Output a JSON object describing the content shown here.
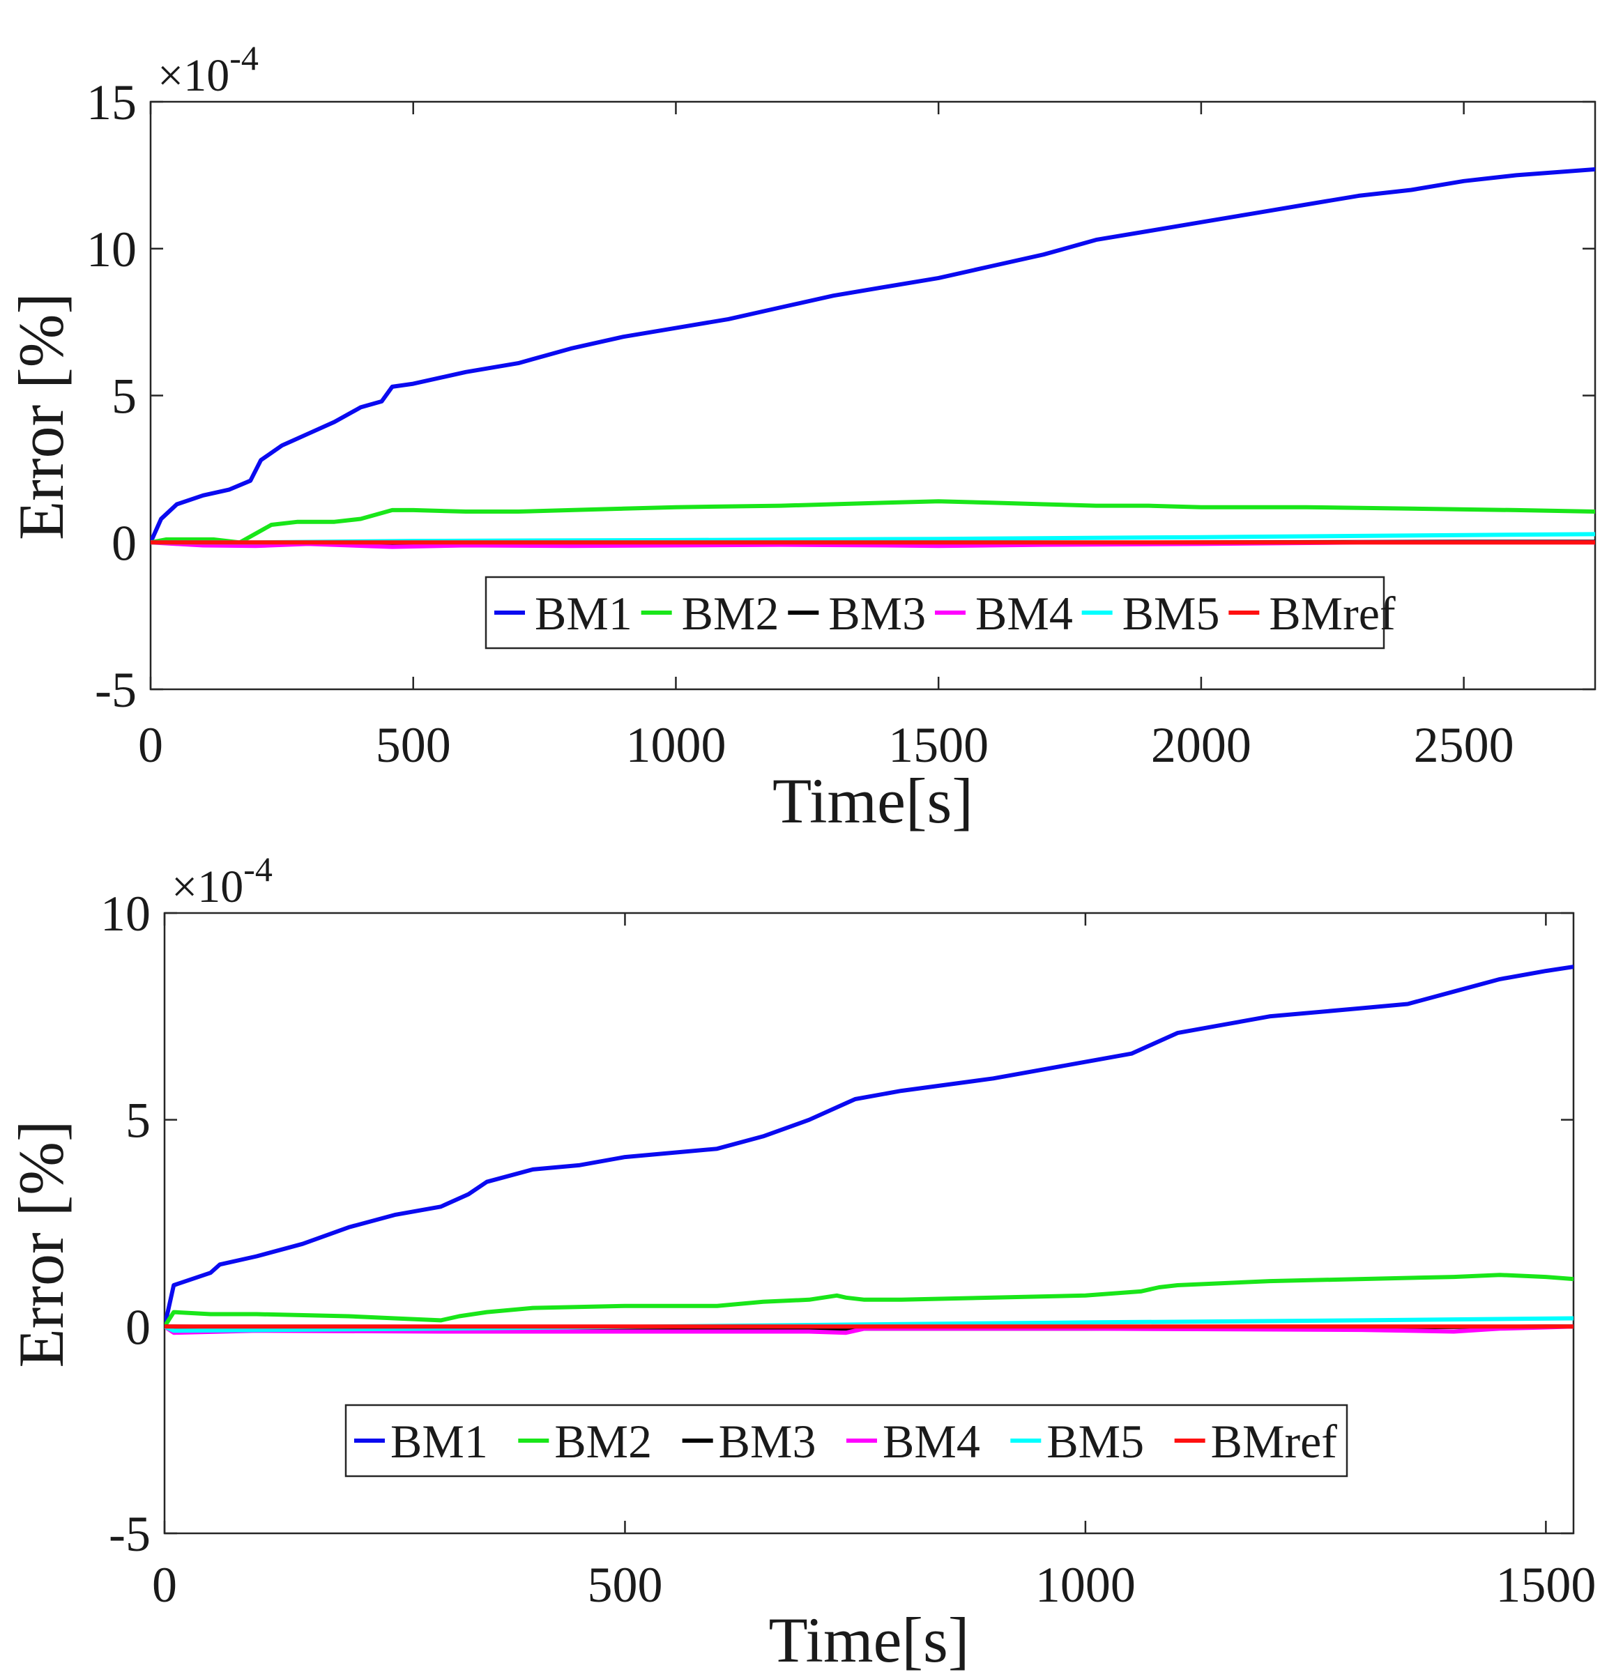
{
  "chart_data": [
    {
      "type": "line",
      "xlabel": "Time[s]",
      "ylabel": "Error [%]",
      "y_multiplier": "×10",
      "y_exponent": "-4",
      "xlim": [
        0,
        2750
      ],
      "ylim": [
        -5,
        15
      ],
      "xticks": [
        0,
        500,
        1000,
        1500,
        2000,
        2500
      ],
      "xtick_labels": [
        "0",
        "500",
        "1000",
        "1500",
        "2000",
        "2500"
      ],
      "yticks": [
        -5,
        0,
        5,
        10,
        15
      ],
      "ytick_labels": [
        "-5",
        "0",
        "5",
        "10",
        "15"
      ],
      "legend_position": "lower-center",
      "series": [
        {
          "name": "BM1",
          "color": "#0a0af0",
          "x": [
            0,
            20,
            50,
            100,
            150,
            190,
            210,
            250,
            300,
            350,
            400,
            440,
            460,
            500,
            600,
            700,
            800,
            900,
            1000,
            1100,
            1200,
            1300,
            1400,
            1500,
            1600,
            1700,
            1800,
            1900,
            2000,
            2100,
            2200,
            2300,
            2400,
            2500,
            2600,
            2750
          ],
          "y": [
            0,
            0.8,
            1.3,
            1.6,
            1.8,
            2.1,
            2.8,
            3.3,
            3.7,
            4.1,
            4.6,
            4.8,
            5.3,
            5.4,
            5.8,
            6.1,
            6.6,
            7.0,
            7.3,
            7.6,
            8.0,
            8.4,
            8.7,
            9.0,
            9.4,
            9.8,
            10.3,
            10.6,
            10.9,
            11.2,
            11.5,
            11.8,
            12.0,
            12.3,
            12.5,
            12.7
          ]
        },
        {
          "name": "BM2",
          "color": "#19e619",
          "x": [
            0,
            30,
            120,
            170,
            200,
            230,
            280,
            350,
            400,
            460,
            500,
            600,
            700,
            800,
            900,
            1000,
            1200,
            1400,
            1500,
            1600,
            1700,
            1800,
            1900,
            2000,
            2200,
            2400,
            2600,
            2750
          ],
          "y": [
            0,
            0.1,
            0.1,
            0,
            0.3,
            0.6,
            0.7,
            0.7,
            0.8,
            1.1,
            1.1,
            1.05,
            1.05,
            1.1,
            1.15,
            1.2,
            1.25,
            1.35,
            1.4,
            1.35,
            1.3,
            1.25,
            1.25,
            1.2,
            1.2,
            1.15,
            1.1,
            1.05
          ]
        },
        {
          "name": "BM3",
          "color": "#000000",
          "x": [
            0,
            500,
            1000,
            1500,
            2000,
            2500,
            2750
          ],
          "y": [
            0,
            -0.02,
            -0.02,
            -0.02,
            0,
            0.02,
            0.02
          ]
        },
        {
          "name": "BM4",
          "color": "#ff00ff",
          "x": [
            0,
            100,
            200,
            300,
            460,
            600,
            800,
            1000,
            1200,
            1400,
            1500,
            1700,
            2000,
            2300,
            2750
          ],
          "y": [
            0,
            -0.1,
            -0.12,
            -0.05,
            -0.15,
            -0.1,
            -0.12,
            -0.1,
            -0.08,
            -0.1,
            -0.12,
            -0.08,
            -0.05,
            0,
            0
          ]
        },
        {
          "name": "BM5",
          "color": "#00ffff",
          "x": [
            0,
            200,
            500,
            1000,
            1500,
            2000,
            2500,
            2750
          ],
          "y": [
            0,
            0,
            0.05,
            0.08,
            0.12,
            0.18,
            0.25,
            0.28
          ]
        },
        {
          "name": "BMref",
          "color": "#ff1010",
          "x": [
            0,
            2750
          ],
          "y": [
            0,
            0
          ]
        }
      ]
    },
    {
      "type": "line",
      "xlabel": "Time[s]",
      "ylabel": "Error [%]",
      "y_multiplier": "×10",
      "y_exponent": "-4",
      "xlim": [
        0,
        1530
      ],
      "ylim": [
        -5,
        10
      ],
      "xticks": [
        0,
        500,
        1000,
        1500
      ],
      "xtick_labels": [
        "0",
        "500",
        "1000",
        "1500"
      ],
      "yticks": [
        -5,
        0,
        5,
        10
      ],
      "ytick_labels": [
        "-5",
        "0",
        "5",
        "10"
      ],
      "legend_position": "lower-center",
      "series": [
        {
          "name": "BM1",
          "color": "#0a0af0",
          "x": [
            0,
            10,
            50,
            60,
            100,
            150,
            200,
            250,
            300,
            330,
            350,
            400,
            450,
            500,
            600,
            650,
            700,
            740,
            750,
            800,
            900,
            1000,
            1050,
            1070,
            1100,
            1150,
            1200,
            1300,
            1350,
            1400,
            1450,
            1500,
            1530
          ],
          "y": [
            0,
            1.0,
            1.3,
            1.5,
            1.7,
            2.0,
            2.4,
            2.7,
            2.9,
            3.2,
            3.5,
            3.8,
            3.9,
            4.1,
            4.3,
            4.6,
            5.0,
            5.4,
            5.5,
            5.7,
            6.0,
            6.4,
            6.6,
            6.8,
            7.1,
            7.3,
            7.5,
            7.7,
            7.8,
            8.1,
            8.4,
            8.6,
            8.7
          ]
        },
        {
          "name": "BM2",
          "color": "#19e619",
          "x": [
            0,
            10,
            50,
            100,
            200,
            250,
            300,
            320,
            350,
            400,
            500,
            600,
            650,
            700,
            730,
            740,
            760,
            800,
            900,
            1000,
            1060,
            1080,
            1100,
            1200,
            1300,
            1400,
            1450,
            1500,
            1530
          ],
          "y": [
            0,
            0.35,
            0.3,
            0.3,
            0.25,
            0.2,
            0.15,
            0.25,
            0.35,
            0.45,
            0.5,
            0.5,
            0.6,
            0.65,
            0.75,
            0.7,
            0.65,
            0.65,
            0.7,
            0.75,
            0.85,
            0.95,
            1.0,
            1.1,
            1.15,
            1.2,
            1.25,
            1.2,
            1.15
          ]
        },
        {
          "name": "BM3",
          "color": "#000000",
          "x": [
            0,
            500,
            1000,
            1500,
            1530
          ],
          "y": [
            0,
            -0.05,
            -0.05,
            0,
            0
          ]
        },
        {
          "name": "BM4",
          "color": "#ff00ff",
          "x": [
            0,
            10,
            100,
            300,
            500,
            700,
            740,
            760,
            1000,
            1300,
            1400,
            1450,
            1500,
            1530
          ],
          "y": [
            0,
            -0.15,
            -0.1,
            -0.12,
            -0.12,
            -0.12,
            -0.15,
            -0.05,
            -0.05,
            -0.08,
            -0.12,
            -0.05,
            -0.02,
            0
          ]
        },
        {
          "name": "BM5",
          "color": "#00ffff",
          "x": [
            0,
            10,
            300,
            750,
            1000,
            1300,
            1530
          ],
          "y": [
            0,
            -0.1,
            -0.05,
            0.05,
            0.1,
            0.15,
            0.2
          ]
        },
        {
          "name": "BMref",
          "color": "#ff1010",
          "x": [
            0,
            1530
          ],
          "y": [
            0,
            0
          ]
        }
      ]
    }
  ]
}
